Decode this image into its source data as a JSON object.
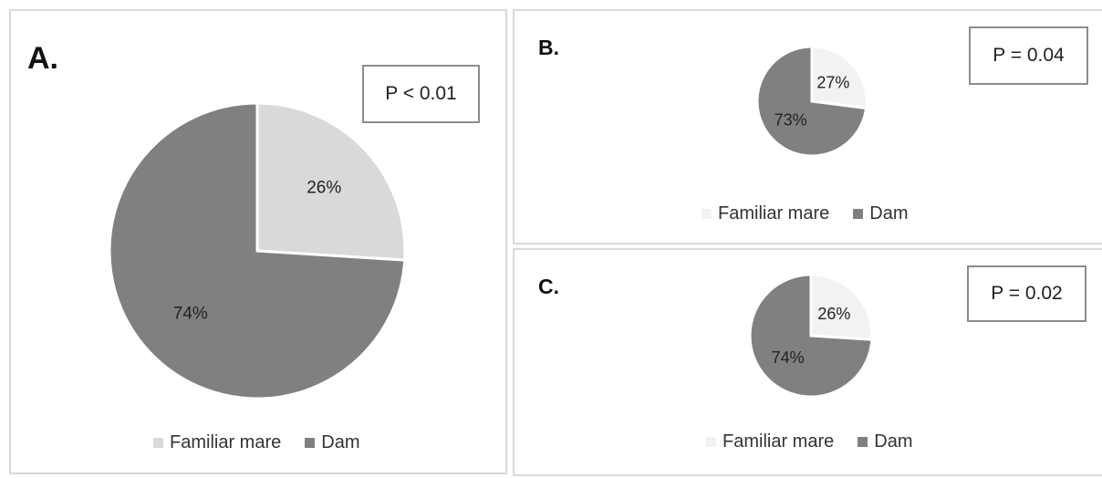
{
  "panels": [
    {
      "letter": "A.",
      "pvalue": "P < 0.01"
    },
    {
      "letter": "B.",
      "pvalue": "P = 0.04"
    },
    {
      "letter": "C.",
      "pvalue": "P = 0.02"
    }
  ],
  "colors": {
    "familiar_mare_a": "#d9d9d9",
    "familiar_mare_bc": "#f2f2f2",
    "dam": "#808080",
    "border": "#d9d9d9",
    "label_text": "#222222"
  },
  "chart_data": [
    {
      "type": "pie",
      "title": "",
      "categories": [
        "Familiar mare",
        "Dam"
      ],
      "values": [
        26,
        74
      ],
      "data_labels": [
        "26%",
        "74%"
      ],
      "legend": "bottom"
    },
    {
      "type": "pie",
      "title": "",
      "categories": [
        "Familiar mare",
        "Dam"
      ],
      "values": [
        27,
        73
      ],
      "data_labels": [
        "27%",
        "73%"
      ],
      "legend": "bottom"
    },
    {
      "type": "pie",
      "title": "",
      "categories": [
        "Familiar mare",
        "Dam"
      ],
      "values": [
        26,
        74
      ],
      "data_labels": [
        "26%",
        "74%"
      ],
      "legend": "bottom"
    }
  ]
}
